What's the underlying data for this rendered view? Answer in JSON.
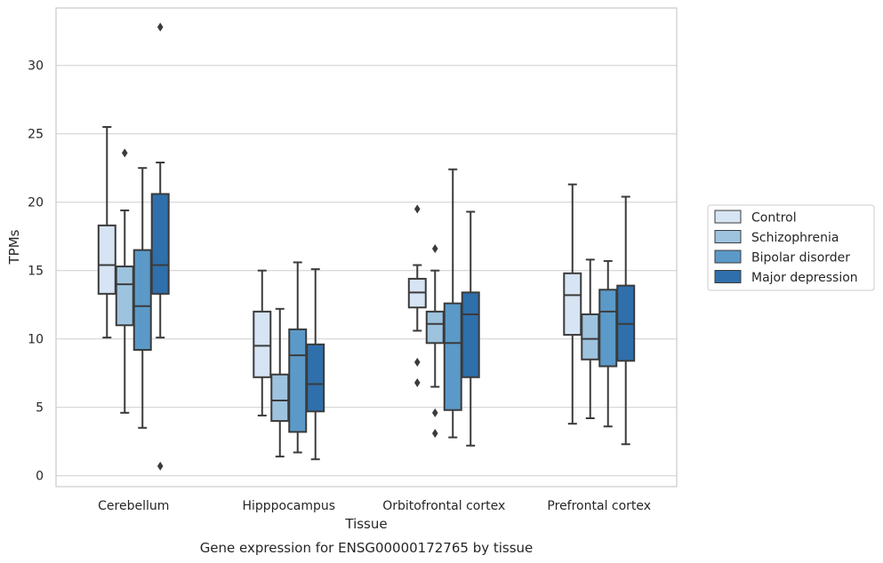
{
  "caption": "Gene expression for ENSG00000172765 by tissue",
  "chart_data": {
    "type": "box",
    "xlabel": "Tissue",
    "ylabel": "TPMs",
    "ylim": [
      -0.8,
      34.2
    ],
    "yticks": [
      0,
      5,
      10,
      15,
      20,
      25,
      30
    ],
    "grid": "horizontal",
    "legend_position": "right",
    "categories": [
      "Cerebellum",
      "Hipppocampus",
      "Orbitofrontal cortex",
      "Prefrontal cortex"
    ],
    "series": [
      {
        "name": "Control",
        "color": "#d6e4f3",
        "boxes": [
          {
            "whislo": 10.1,
            "q1": 13.3,
            "med": 15.4,
            "q3": 18.3,
            "whishi": 25.5,
            "fliers": []
          },
          {
            "whislo": 4.4,
            "q1": 7.2,
            "med": 9.5,
            "q3": 12.0,
            "whishi": 15.0,
            "fliers": []
          },
          {
            "whislo": 10.6,
            "q1": 12.3,
            "med": 13.4,
            "q3": 14.4,
            "whishi": 15.4,
            "fliers": [
              19.5,
              8.3,
              6.8
            ]
          },
          {
            "whislo": 3.8,
            "q1": 10.3,
            "med": 13.2,
            "q3": 14.8,
            "whishi": 21.3,
            "fliers": []
          }
        ]
      },
      {
        "name": "Schizophrenia",
        "color": "#9ec3de",
        "boxes": [
          {
            "whislo": 4.6,
            "q1": 11.0,
            "med": 14.0,
            "q3": 15.3,
            "whishi": 19.4,
            "fliers": [
              23.6
            ]
          },
          {
            "whislo": 1.4,
            "q1": 4.0,
            "med": 5.5,
            "q3": 7.4,
            "whishi": 12.2,
            "fliers": []
          },
          {
            "whislo": 6.5,
            "q1": 9.7,
            "med": 11.1,
            "q3": 12.0,
            "whishi": 15.0,
            "fliers": [
              16.6,
              4.6,
              3.1
            ]
          },
          {
            "whislo": 4.2,
            "q1": 8.5,
            "med": 10.0,
            "q3": 11.8,
            "whishi": 15.8,
            "fliers": []
          }
        ]
      },
      {
        "name": "Bipolar disorder",
        "color": "#5b9ac8",
        "boxes": [
          {
            "whislo": 3.5,
            "q1": 9.2,
            "med": 12.4,
            "q3": 16.5,
            "whishi": 22.5,
            "fliers": []
          },
          {
            "whislo": 1.7,
            "q1": 3.2,
            "med": 8.8,
            "q3": 10.7,
            "whishi": 15.6,
            "fliers": []
          },
          {
            "whislo": 2.8,
            "q1": 4.8,
            "med": 9.7,
            "q3": 12.6,
            "whishi": 22.4,
            "fliers": []
          },
          {
            "whislo": 3.6,
            "q1": 8.0,
            "med": 12.0,
            "q3": 13.6,
            "whishi": 15.7,
            "fliers": []
          }
        ]
      },
      {
        "name": "Major depression",
        "color": "#2f6fab",
        "boxes": [
          {
            "whislo": 10.1,
            "q1": 13.3,
            "med": 15.4,
            "q3": 20.6,
            "whishi": 22.9,
            "fliers": [
              32.8,
              0.7
            ]
          },
          {
            "whislo": 1.2,
            "q1": 4.7,
            "med": 6.7,
            "q3": 9.6,
            "whishi": 15.1,
            "fliers": []
          },
          {
            "whislo": 2.2,
            "q1": 7.2,
            "med": 11.8,
            "q3": 13.4,
            "whishi": 19.3,
            "fliers": []
          },
          {
            "whislo": 2.3,
            "q1": 8.4,
            "med": 11.1,
            "q3": 13.9,
            "whishi": 20.4,
            "fliers": []
          }
        ]
      }
    ]
  }
}
